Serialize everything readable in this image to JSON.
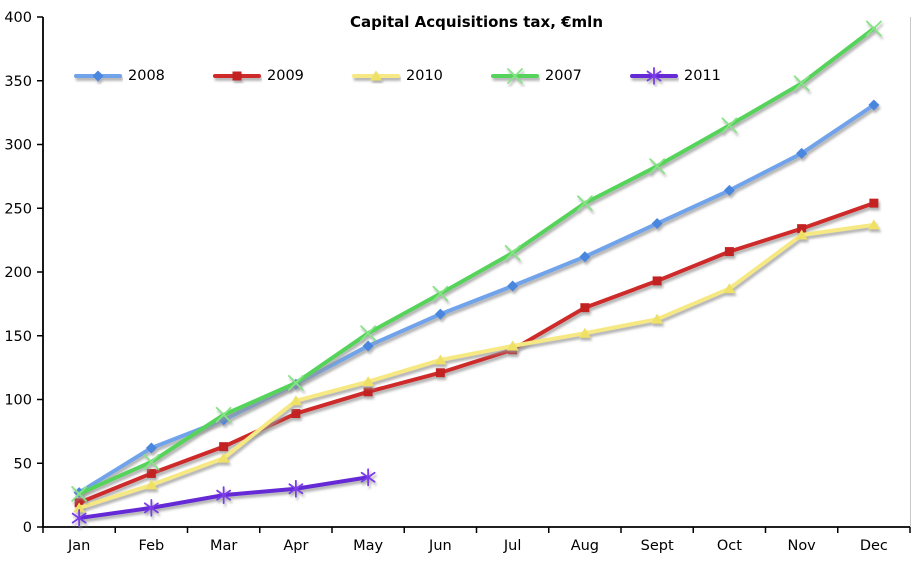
{
  "chart_data": {
    "type": "line",
    "title": "Capital Acquisitions tax, €mln",
    "categories": [
      "Jan",
      "Feb",
      "Mar",
      "Apr",
      "May",
      "Jun",
      "Jul",
      "Aug",
      "Sept",
      "Oct",
      "Nov",
      "Dec"
    ],
    "xlabel": "",
    "ylabel": "",
    "ylim": [
      0,
      400
    ],
    "ytick_labels": [
      "0",
      "50",
      "100",
      "150",
      "200",
      "250",
      "300",
      "350",
      "400"
    ],
    "grid": false,
    "legend_position": "top",
    "series": [
      {
        "name": "2008",
        "color": "#6FA3EA",
        "marker": "diamond",
        "marker_color": "#4A86DE",
        "values": [
          27,
          62,
          84,
          112,
          142,
          167,
          189,
          212,
          238,
          264,
          293,
          331
        ]
      },
      {
        "name": "2009",
        "color": "#CE2A2A",
        "marker": "square",
        "marker_color": "#C22222",
        "values": [
          19,
          42,
          63,
          89,
          106,
          121,
          139,
          172,
          193,
          216,
          234,
          254
        ]
      },
      {
        "name": "2010",
        "color": "#F6E983",
        "marker": "triangle",
        "marker_color": "#EFE066",
        "values": [
          15,
          33,
          54,
          99,
          114,
          131,
          142,
          152,
          163,
          187,
          229,
          237
        ]
      },
      {
        "name": "2007",
        "color": "#57D35A",
        "marker": "x",
        "marker_color": "#86E386",
        "values": [
          26,
          51,
          88,
          113,
          152,
          183,
          215,
          254,
          283,
          315,
          348,
          391
        ]
      },
      {
        "name": "2011",
        "color": "#6529D6",
        "marker": "asterisk",
        "marker_color": "#7B3BE8",
        "values": [
          7,
          15,
          25,
          30,
          39
        ]
      }
    ],
    "axis_color": "#000000",
    "frame_right_color": "#C8C8C8",
    "shadow_color": "#969696"
  }
}
